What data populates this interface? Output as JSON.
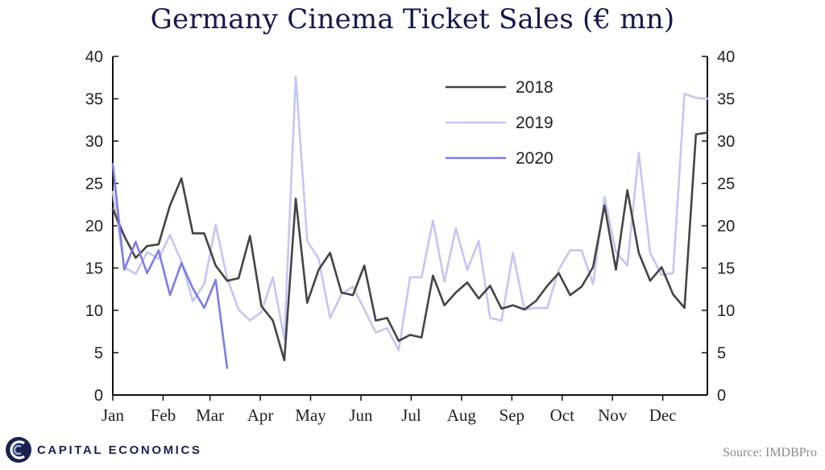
{
  "chart_data": {
    "type": "line",
    "title": "Germany Cinema Ticket Sales (€ mn)",
    "xlabel": "",
    "ylabel": "",
    "ylim": [
      0,
      40
    ],
    "yticks": [
      0,
      5,
      10,
      15,
      20,
      25,
      30,
      35,
      40
    ],
    "xlim": [
      1,
      53
    ],
    "months": [
      "Jan",
      "Feb",
      "Mar",
      "Apr",
      "May",
      "Jun",
      "Jul",
      "Aug",
      "Sep",
      "Oct",
      "Nov",
      "Dec"
    ],
    "month_weeks": [
      1,
      5.4,
      9.5,
      13.9,
      18.3,
      22.7,
      27.1,
      31.5,
      35.9,
      40.3,
      44.7,
      49.1
    ],
    "grid": false,
    "legend_position": "top-center",
    "series": [
      {
        "name": "2018",
        "color": "#444444",
        "x": [
          1,
          2,
          3,
          4,
          5,
          6,
          7,
          8,
          9,
          10,
          11,
          12,
          13,
          14,
          15,
          16,
          17,
          18,
          19,
          20,
          21,
          22,
          23,
          24,
          25,
          26,
          27,
          28,
          29,
          30,
          31,
          32,
          33,
          34,
          35,
          36,
          37,
          38,
          39,
          40,
          41,
          42,
          43,
          44,
          45,
          46,
          47,
          48,
          49,
          50,
          51,
          52,
          53
        ],
        "values": [
          22,
          18.8,
          16.2,
          17.6,
          17.8,
          22.4,
          25.6,
          19.1,
          19.1,
          15.3,
          13.5,
          13.8,
          18.8,
          10.5,
          8.8,
          4.1,
          23.2,
          10.9,
          14.8,
          16.8,
          12.1,
          11.8,
          15.3,
          8.8,
          9.1,
          6.4,
          7.1,
          6.8,
          14.1,
          10.6,
          12.1,
          13.3,
          11.4,
          12.9,
          10.2,
          10.6,
          10.1,
          11.1,
          12.9,
          14.4,
          11.8,
          12.8,
          15.1,
          22.4,
          14.8,
          24.2,
          16.8,
          13.5,
          15.1,
          11.9,
          10.3,
          30.8,
          31
        ]
      },
      {
        "name": "2019",
        "color": "#c4c6f3",
        "x": [
          1,
          2,
          3,
          4,
          5,
          6,
          7,
          8,
          9,
          10,
          11,
          12,
          13,
          14,
          15,
          16,
          17,
          18,
          19,
          20,
          21,
          22,
          23,
          24,
          25,
          26,
          27,
          28,
          29,
          30,
          31,
          32,
          33,
          34,
          35,
          36,
          37,
          38,
          39,
          40,
          41,
          42,
          43,
          44,
          45,
          46,
          47,
          48,
          49,
          50,
          51,
          52,
          53
        ],
        "values": [
          24,
          15.1,
          14.3,
          16.9,
          16.1,
          18.9,
          15.8,
          11.1,
          13.1,
          20.1,
          13.8,
          10.1,
          8.8,
          9.8,
          13.9,
          6.6,
          37.6,
          18.2,
          16.1,
          9.1,
          11.9,
          12.8,
          10.1,
          7.4,
          7.9,
          5.3,
          13.9,
          13.9,
          20.6,
          13.4,
          19.7,
          14.8,
          18.2,
          9.1,
          8.8,
          16.8,
          10.1,
          10.3,
          10.3,
          14.8,
          17.1,
          17.1,
          13.1,
          23.4,
          16.9,
          15.3,
          28.6,
          16.8,
          14.2,
          14.4,
          35.6,
          35.1,
          35
        ]
      },
      {
        "name": "2020",
        "color": "#7c7de8",
        "x": [
          1,
          2,
          3,
          4,
          5,
          6,
          7,
          8,
          9,
          10,
          11
        ],
        "values": [
          27.3,
          14.8,
          18.1,
          14.4,
          17.1,
          11.8,
          15.6,
          12.6,
          10.3,
          13.6,
          3.2
        ]
      }
    ]
  },
  "branding": {
    "company": "CAPITAL ECONOMICS"
  },
  "source": "Source: IMDBPro"
}
